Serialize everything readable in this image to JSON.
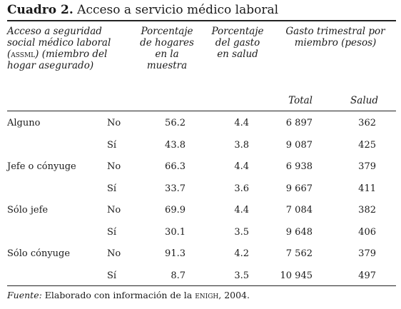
{
  "table": {
    "title_bold": "Cuadro 2.",
    "title_text": "Acceso a servicio médico laboral",
    "header": {
      "col1_pre": "Acceso a seguridad social médico laboral (",
      "col1_abbr": "assml",
      "col1_post": ") (miembro del hogar asegurado)",
      "col2": "Porcentaje de hogares en la muestra",
      "col3": "Porcentaje del gasto en salud",
      "col4": "Gasto trimestral por miembro (pesos)",
      "col4_sub_total": "Total",
      "col4_sub_salud": "Salud"
    },
    "rows": [
      {
        "group": "Alguno",
        "answer": "No",
        "pct_hogares": "56.2",
        "pct_gasto": "4.4",
        "total": "6 897",
        "salud": "362"
      },
      {
        "group": "",
        "answer": "Sí",
        "pct_hogares": "43.8",
        "pct_gasto": "3.8",
        "total": "9 087",
        "salud": "425"
      },
      {
        "group": "Jefe o cónyuge",
        "answer": "No",
        "pct_hogares": "66.3",
        "pct_gasto": "4.4",
        "total": "6 938",
        "salud": "379"
      },
      {
        "group": "",
        "answer": "Sí",
        "pct_hogares": "33.7",
        "pct_gasto": "3.6",
        "total": "9 667",
        "salud": "411"
      },
      {
        "group": "Sólo jefe",
        "answer": "No",
        "pct_hogares": "69.9",
        "pct_gasto": "4.4",
        "total": "7 084",
        "salud": "382"
      },
      {
        "group": "",
        "answer": "Sí",
        "pct_hogares": "30.1",
        "pct_gasto": "3.5",
        "total": "9 648",
        "salud": "406"
      },
      {
        "group": "Sólo cónyuge",
        "answer": "No",
        "pct_hogares": "91.3",
        "pct_gasto": "4.2",
        "total": "7 562",
        "salud": "379"
      },
      {
        "group": "",
        "answer": "Sí",
        "pct_hogares": "8.7",
        "pct_gasto": "3.5",
        "total": "10 945",
        "salud": "497"
      }
    ],
    "footer": {
      "label": "Fuente:",
      "text_pre": " Elaborado con información de la ",
      "abbr": "enigh",
      "text_post": ", 2004."
    }
  }
}
